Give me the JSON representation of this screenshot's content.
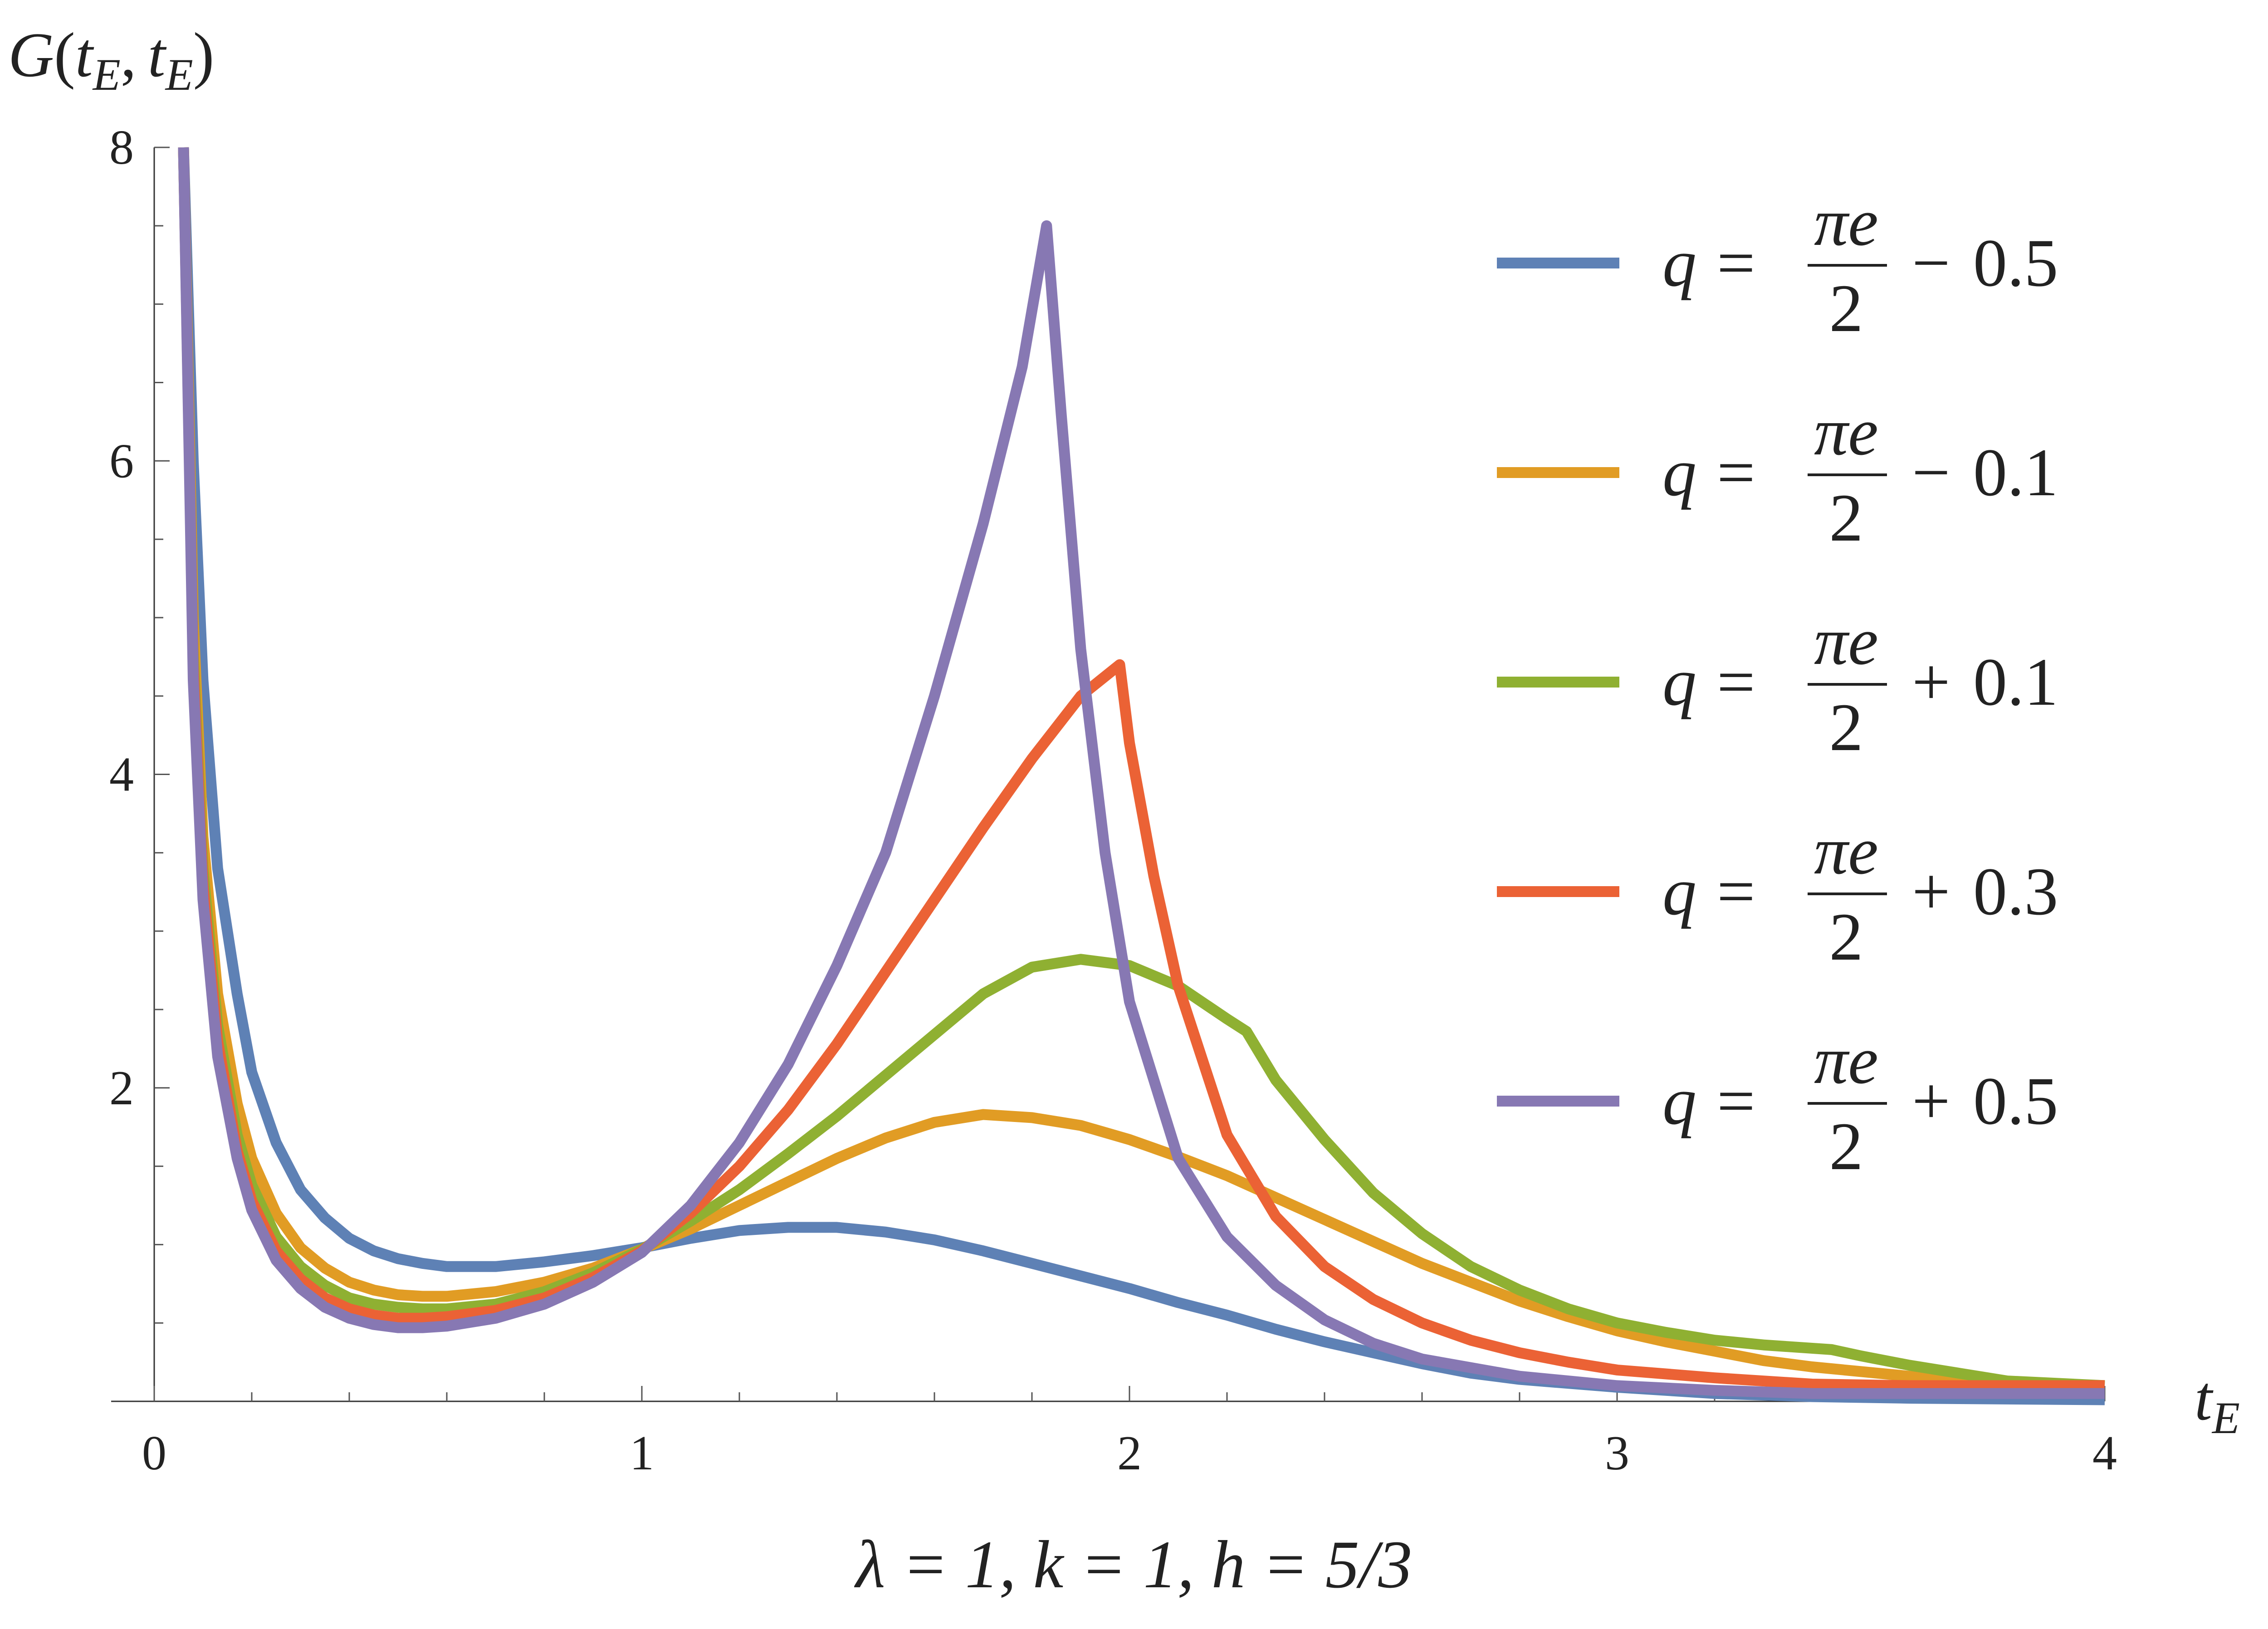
{
  "chart_data": {
    "type": "line",
    "ylabel": "G(t_E, t_E)",
    "ylabel_parts": {
      "G": "G",
      "open": "(",
      "t1": "t",
      "sub1": "E",
      "comma": ",",
      "t2": "t",
      "sub2": "E",
      "close": ")"
    },
    "xlabel_parts": {
      "t": "t",
      "sub": "E"
    },
    "caption": "λ = 1,  k = 1,  h = 5/3",
    "xlim": [
      0,
      4
    ],
    "ylim": [
      0,
      8
    ],
    "x_ticks": [
      "0",
      "1",
      "2",
      "3",
      "4"
    ],
    "y_ticks": [
      "2",
      "4",
      "6",
      "8"
    ],
    "grid": false,
    "legend_position": "top-right",
    "series": [
      {
        "name": "q = πe/2 − 0.5",
        "legend": {
          "q": "q",
          "eq": "=",
          "num": "πe",
          "den": "2",
          "op": "−",
          "val": "0.5"
        },
        "color": "#5E81B5",
        "points": [
          [
            0.06,
            8
          ],
          [
            0.08,
            6.0
          ],
          [
            0.1,
            4.6
          ],
          [
            0.13,
            3.4
          ],
          [
            0.17,
            2.6
          ],
          [
            0.2,
            2.1
          ],
          [
            0.25,
            1.65
          ],
          [
            0.3,
            1.35
          ],
          [
            0.35,
            1.17
          ],
          [
            0.4,
            1.04
          ],
          [
            0.45,
            0.96
          ],
          [
            0.5,
            0.91
          ],
          [
            0.55,
            0.88
          ],
          [
            0.6,
            0.86
          ],
          [
            0.7,
            0.86
          ],
          [
            0.8,
            0.89
          ],
          [
            0.9,
            0.93
          ],
          [
            1.0,
            0.98
          ],
          [
            1.1,
            1.04
          ],
          [
            1.2,
            1.09
          ],
          [
            1.3,
            1.11
          ],
          [
            1.4,
            1.11
          ],
          [
            1.5,
            1.08
          ],
          [
            1.6,
            1.03
          ],
          [
            1.7,
            0.96
          ],
          [
            1.8,
            0.88
          ],
          [
            1.9,
            0.8
          ],
          [
            2.0,
            0.72
          ],
          [
            2.1,
            0.63
          ],
          [
            2.2,
            0.55
          ],
          [
            2.3,
            0.46
          ],
          [
            2.4,
            0.38
          ],
          [
            2.5,
            0.31
          ],
          [
            2.6,
            0.24
          ],
          [
            2.7,
            0.18
          ],
          [
            2.8,
            0.14
          ],
          [
            3.0,
            0.09
          ],
          [
            3.2,
            0.05
          ],
          [
            3.4,
            0.03
          ],
          [
            3.6,
            0.02
          ],
          [
            4.0,
            0.01
          ]
        ]
      },
      {
        "name": "q = πe/2 − 0.1",
        "legend": {
          "q": "q",
          "eq": "=",
          "num": "πe",
          "den": "2",
          "op": "−",
          "val": "0.1"
        },
        "color": "#E19C24",
        "points": [
          [
            0.06,
            8
          ],
          [
            0.08,
            5.0
          ],
          [
            0.1,
            3.6
          ],
          [
            0.13,
            2.6
          ],
          [
            0.17,
            1.9
          ],
          [
            0.2,
            1.55
          ],
          [
            0.25,
            1.2
          ],
          [
            0.3,
            0.98
          ],
          [
            0.35,
            0.85
          ],
          [
            0.4,
            0.76
          ],
          [
            0.45,
            0.71
          ],
          [
            0.5,
            0.68
          ],
          [
            0.55,
            0.67
          ],
          [
            0.6,
            0.67
          ],
          [
            0.7,
            0.7
          ],
          [
            0.8,
            0.76
          ],
          [
            0.9,
            0.85
          ],
          [
            1.0,
            0.97
          ],
          [
            1.1,
            1.1
          ],
          [
            1.2,
            1.25
          ],
          [
            1.3,
            1.4
          ],
          [
            1.4,
            1.55
          ],
          [
            1.5,
            1.68
          ],
          [
            1.6,
            1.78
          ],
          [
            1.7,
            1.83
          ],
          [
            1.8,
            1.81
          ],
          [
            1.9,
            1.76
          ],
          [
            2.0,
            1.67
          ],
          [
            2.1,
            1.56
          ],
          [
            2.2,
            1.44
          ],
          [
            2.3,
            1.3
          ],
          [
            2.4,
            1.16
          ],
          [
            2.5,
            1.02
          ],
          [
            2.6,
            0.88
          ],
          [
            2.7,
            0.76
          ],
          [
            2.8,
            0.64
          ],
          [
            2.9,
            0.54
          ],
          [
            3.0,
            0.45
          ],
          [
            3.1,
            0.38
          ],
          [
            3.2,
            0.32
          ],
          [
            3.3,
            0.26
          ],
          [
            3.4,
            0.22
          ],
          [
            3.6,
            0.16
          ],
          [
            3.8,
            0.12
          ],
          [
            4.0,
            0.1
          ]
        ]
      },
      {
        "name": "q = πe/2 + 0.1",
        "legend": {
          "q": "q",
          "eq": "=",
          "num": "πe",
          "den": "2",
          "op": "+",
          "val": "0.1"
        },
        "color": "#8FB032",
        "points": [
          [
            0.06,
            8
          ],
          [
            0.08,
            4.8
          ],
          [
            0.1,
            3.4
          ],
          [
            0.13,
            2.4
          ],
          [
            0.17,
            1.7
          ],
          [
            0.2,
            1.38
          ],
          [
            0.25,
            1.05
          ],
          [
            0.3,
            0.86
          ],
          [
            0.35,
            0.74
          ],
          [
            0.4,
            0.66
          ],
          [
            0.45,
            0.62
          ],
          [
            0.5,
            0.6
          ],
          [
            0.55,
            0.59
          ],
          [
            0.6,
            0.59
          ],
          [
            0.7,
            0.62
          ],
          [
            0.8,
            0.7
          ],
          [
            0.9,
            0.82
          ],
          [
            1.0,
            0.97
          ],
          [
            1.1,
            1.15
          ],
          [
            1.2,
            1.35
          ],
          [
            1.3,
            1.58
          ],
          [
            1.4,
            1.82
          ],
          [
            1.5,
            2.08
          ],
          [
            1.6,
            2.34
          ],
          [
            1.7,
            2.6
          ],
          [
            1.8,
            2.77
          ],
          [
            1.9,
            2.82
          ],
          [
            2.0,
            2.78
          ],
          [
            2.1,
            2.65
          ],
          [
            2.2,
            2.44
          ],
          [
            2.24,
            2.36
          ],
          [
            2.3,
            2.05
          ],
          [
            2.4,
            1.67
          ],
          [
            2.5,
            1.33
          ],
          [
            2.6,
            1.07
          ],
          [
            2.7,
            0.86
          ],
          [
            2.8,
            0.71
          ],
          [
            2.9,
            0.59
          ],
          [
            3.0,
            0.5
          ],
          [
            3.1,
            0.44
          ],
          [
            3.2,
            0.39
          ],
          [
            3.3,
            0.36
          ],
          [
            3.44,
            0.33
          ],
          [
            3.5,
            0.29
          ],
          [
            3.6,
            0.23
          ],
          [
            3.8,
            0.13
          ],
          [
            4.0,
            0.1
          ]
        ]
      },
      {
        "name": "q = πe/2 + 0.3",
        "legend": {
          "q": "q",
          "eq": "=",
          "num": "πe",
          "den": "2",
          "op": "+",
          "val": "0.3"
        },
        "color": "#EB6235",
        "points": [
          [
            0.06,
            8
          ],
          [
            0.08,
            4.7
          ],
          [
            0.1,
            3.3
          ],
          [
            0.13,
            2.3
          ],
          [
            0.17,
            1.6
          ],
          [
            0.2,
            1.28
          ],
          [
            0.25,
            0.96
          ],
          [
            0.3,
            0.78
          ],
          [
            0.35,
            0.66
          ],
          [
            0.4,
            0.59
          ],
          [
            0.45,
            0.55
          ],
          [
            0.5,
            0.53
          ],
          [
            0.55,
            0.53
          ],
          [
            0.6,
            0.54
          ],
          [
            0.7,
            0.58
          ],
          [
            0.8,
            0.66
          ],
          [
            0.9,
            0.79
          ],
          [
            1.0,
            0.96
          ],
          [
            1.1,
            1.2
          ],
          [
            1.2,
            1.5
          ],
          [
            1.3,
            1.86
          ],
          [
            1.4,
            2.28
          ],
          [
            1.5,
            2.74
          ],
          [
            1.6,
            3.2
          ],
          [
            1.7,
            3.66
          ],
          [
            1.8,
            4.1
          ],
          [
            1.9,
            4.5
          ],
          [
            1.98,
            4.7
          ],
          [
            2.0,
            4.2
          ],
          [
            2.05,
            3.35
          ],
          [
            2.1,
            2.65
          ],
          [
            2.2,
            1.7
          ],
          [
            2.3,
            1.18
          ],
          [
            2.4,
            0.86
          ],
          [
            2.5,
            0.65
          ],
          [
            2.6,
            0.5
          ],
          [
            2.7,
            0.39
          ],
          [
            2.8,
            0.31
          ],
          [
            2.9,
            0.25
          ],
          [
            3.0,
            0.2
          ],
          [
            3.2,
            0.15
          ],
          [
            3.4,
            0.11
          ],
          [
            3.6,
            0.1
          ],
          [
            4.0,
            0.1
          ]
        ]
      },
      {
        "name": "q = πe/2 + 0.5",
        "legend": {
          "q": "q",
          "eq": "=",
          "num": "πe",
          "den": "2",
          "op": "+",
          "val": "0.5"
        },
        "color": "#8778B3",
        "points": [
          [
            0.06,
            8
          ],
          [
            0.08,
            4.6
          ],
          [
            0.1,
            3.2
          ],
          [
            0.13,
            2.2
          ],
          [
            0.17,
            1.55
          ],
          [
            0.2,
            1.22
          ],
          [
            0.25,
            0.9
          ],
          [
            0.3,
            0.72
          ],
          [
            0.35,
            0.6
          ],
          [
            0.4,
            0.53
          ],
          [
            0.45,
            0.49
          ],
          [
            0.5,
            0.47
          ],
          [
            0.55,
            0.47
          ],
          [
            0.6,
            0.48
          ],
          [
            0.7,
            0.53
          ],
          [
            0.8,
            0.62
          ],
          [
            0.9,
            0.76
          ],
          [
            1.0,
            0.95
          ],
          [
            1.1,
            1.25
          ],
          [
            1.2,
            1.65
          ],
          [
            1.3,
            2.15
          ],
          [
            1.4,
            2.78
          ],
          [
            1.5,
            3.5
          ],
          [
            1.6,
            4.5
          ],
          [
            1.7,
            5.6
          ],
          [
            1.78,
            6.6
          ],
          [
            1.83,
            7.5
          ],
          [
            1.86,
            6.3
          ],
          [
            1.9,
            4.8
          ],
          [
            1.95,
            3.5
          ],
          [
            2.0,
            2.55
          ],
          [
            2.1,
            1.55
          ],
          [
            2.2,
            1.05
          ],
          [
            2.3,
            0.74
          ],
          [
            2.4,
            0.52
          ],
          [
            2.5,
            0.37
          ],
          [
            2.6,
            0.27
          ],
          [
            2.8,
            0.16
          ],
          [
            3.0,
            0.1
          ],
          [
            3.2,
            0.07
          ],
          [
            3.4,
            0.05
          ],
          [
            4.0,
            0.05
          ]
        ]
      }
    ]
  }
}
